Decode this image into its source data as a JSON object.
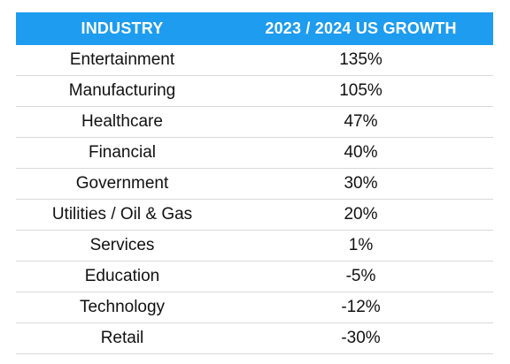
{
  "colors": {
    "header_background": "#1d9cf0",
    "header_text": "#ffffff",
    "row_divider": "#d9d9d9",
    "cell_text": "#111111"
  },
  "table": {
    "headers": [
      "INDUSTRY",
      "2023 / 2024 US GROWTH"
    ],
    "rows": [
      {
        "industry": "Entertainment",
        "growth": "135%"
      },
      {
        "industry": "Manufacturing",
        "growth": "105%"
      },
      {
        "industry": "Healthcare",
        "growth": "47%"
      },
      {
        "industry": "Financial",
        "growth": "40%"
      },
      {
        "industry": "Government",
        "growth": "30%"
      },
      {
        "industry": "Utilities / Oil & Gas",
        "growth": "20%"
      },
      {
        "industry": "Services",
        "growth": "1%"
      },
      {
        "industry": "Education",
        "growth": "-5%"
      },
      {
        "industry": "Technology",
        "growth": "-12%"
      },
      {
        "industry": "Retail",
        "growth": "-30%"
      }
    ]
  }
}
